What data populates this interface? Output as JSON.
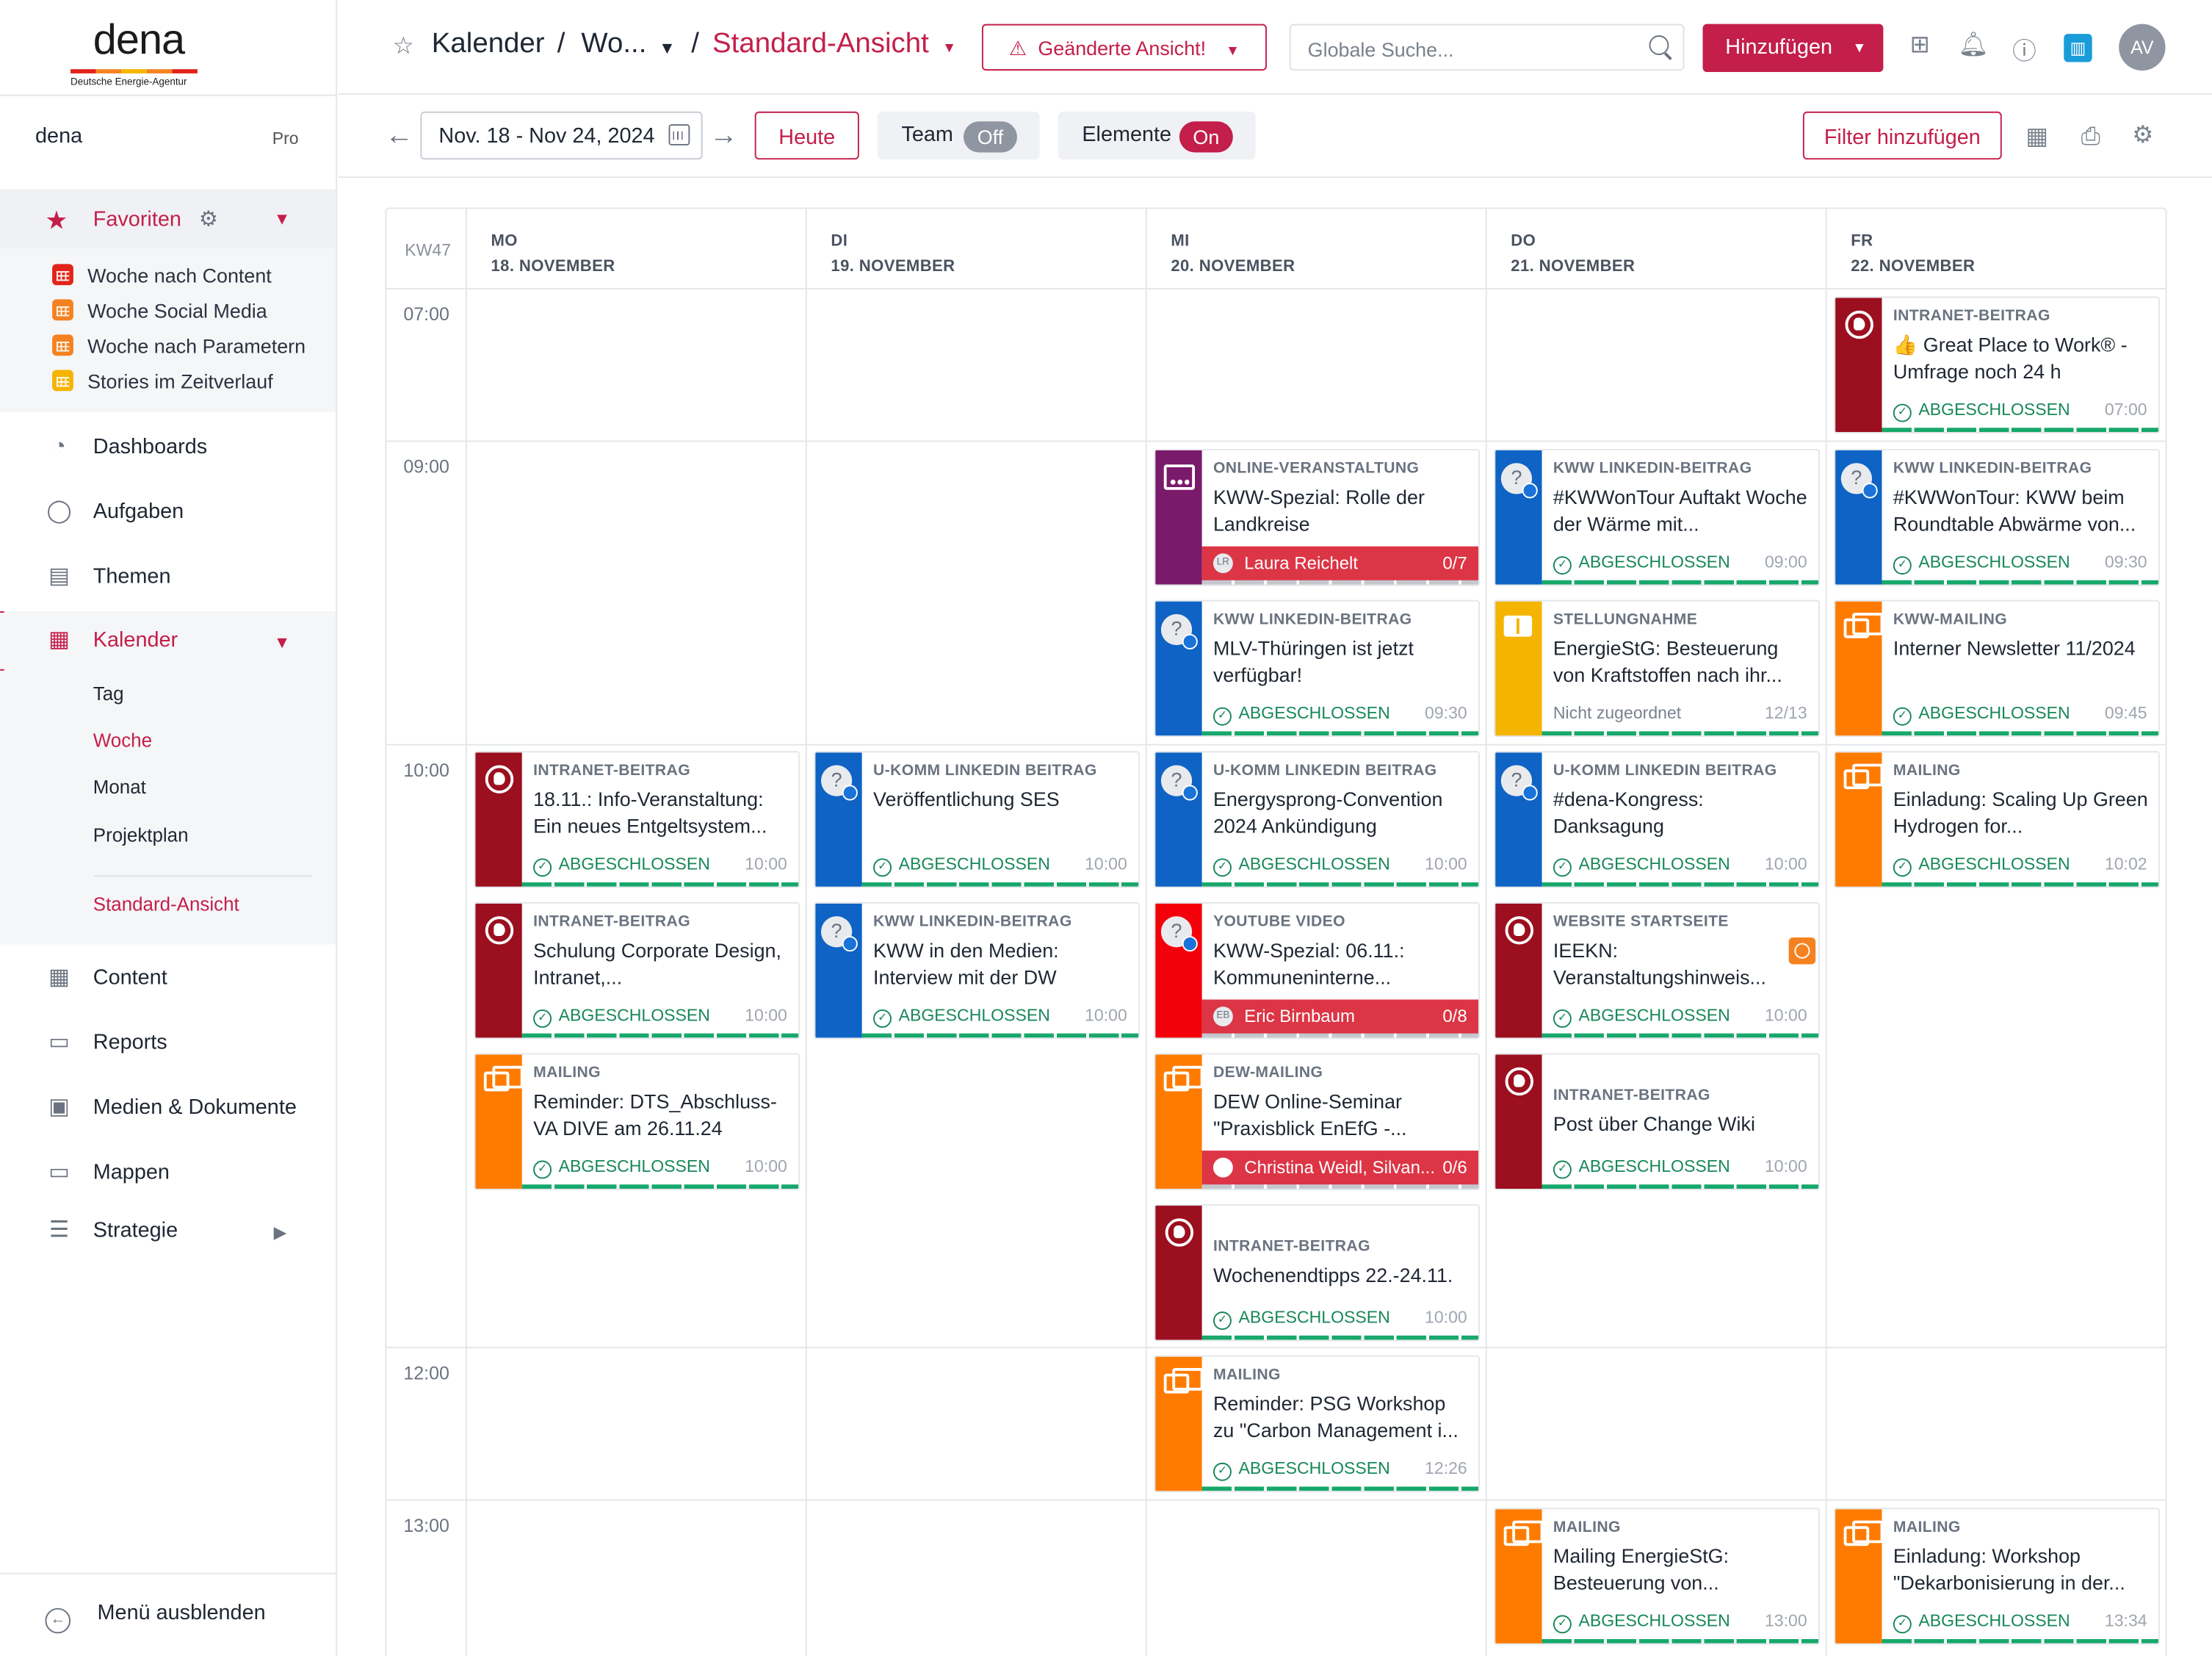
{
  "logo": {
    "word": "dena",
    "sub": "Deutsche Energie-Agentur"
  },
  "org": {
    "name": "dena",
    "plan": "Pro"
  },
  "favorites": {
    "label": "Favoriten",
    "items": [
      {
        "label": "Woche nach Content",
        "color": "#e2231a"
      },
      {
        "label": "Woche Social Media",
        "color": "#f58220"
      },
      {
        "label": "Woche nach Parametern",
        "color": "#f58220"
      },
      {
        "label": "Stories im Zeitverlauf",
        "color": "#f5b400"
      }
    ]
  },
  "nav": {
    "dashboards": "Dashboards",
    "aufgaben": "Aufgaben",
    "themen": "Themen",
    "kalender": "Kalender",
    "content": "Content",
    "reports": "Reports",
    "medien": "Medien & Dokumente",
    "mappen": "Mappen",
    "strategie": "Strategie",
    "collapse": "Menü ausblenden"
  },
  "calendar_views": {
    "tag": "Tag",
    "woche": "Woche",
    "monat": "Monat",
    "projektplan": "Projektplan",
    "standard": "Standard-Ansicht"
  },
  "header": {
    "crumb_root": "Kalender",
    "crumb_sep": "/",
    "crumb_view": "Wo...",
    "crumb_current": "Standard-Ansicht",
    "changed_view": "Geänderte Ansicht!",
    "search_placeholder": "Globale Suche...",
    "add_button": "Hinzufügen",
    "avatar": "AV"
  },
  "toolbar": {
    "date_range": "Nov. 18 - Nov 24, 2024",
    "today": "Heute",
    "team_label": "Team",
    "team_state": "Off",
    "elements_label": "Elemente",
    "elements_state": "On",
    "add_filter": "Filter hinzufügen"
  },
  "week": {
    "kw": "KW47",
    "days": [
      {
        "dow": "MO",
        "date": "18. NOVEMBER"
      },
      {
        "dow": "DI",
        "date": "19. NOVEMBER"
      },
      {
        "dow": "MI",
        "date": "20. NOVEMBER"
      },
      {
        "dow": "DO",
        "date": "21. NOVEMBER"
      },
      {
        "dow": "FR",
        "date": "22. NOVEMBER"
      }
    ],
    "times": [
      "07:00",
      "09:00",
      "10:00",
      "12:00",
      "13:00"
    ]
  },
  "colors": {
    "brand": "#c41e4b",
    "intranet": "#9b0f1f",
    "linkedin": "#0e63c4",
    "mailing": "#ff7b00",
    "event": "#7a1a6b",
    "youtube": "#f4000a",
    "statement": "#f5b400",
    "done": "#17875a"
  },
  "events": [
    {
      "day": 4,
      "row": 0,
      "kind": "globe",
      "color": "#9b0f1f",
      "type": "INTRANET-BEITRAG",
      "title": "👍 Great Place to Work® - Umfrage noch 24 h",
      "status": "ABGESCHLOSSEN",
      "time": "07:00"
    },
    {
      "day": 2,
      "row": 1,
      "kind": "people",
      "color": "#7a1a6b",
      "type": "ONLINE-VERANSTALTUNG",
      "title": "KWW-Spezial: Rolle der Landkreise",
      "assignee": "Laura Reichelt",
      "assignee_initials": "LR",
      "count": "0/7"
    },
    {
      "day": 3,
      "row": 1,
      "kind": "q",
      "color": "#0e63c4",
      "type": "KWW LINKEDIN-BEITRAG",
      "title": "#KWWonTour Auftakt Woche der Wärme mit...",
      "status": "ABGESCHLOSSEN",
      "time": "09:00"
    },
    {
      "day": 4,
      "row": 1,
      "kind": "q",
      "color": "#0e63c4",
      "type": "KWW LINKEDIN-BEITRAG",
      "title": "#KWWonTour: KWW beim Roundtable Abwärme von...",
      "status": "ABGESCHLOSSEN",
      "time": "09:30"
    },
    {
      "day": 2,
      "row": 2,
      "kind": "q",
      "color": "#0e63c4",
      "type": "KWW LINKEDIN-BEITRAG",
      "title": "MLV-Thüringen ist jetzt verfügbar!",
      "status": "ABGESCHLOSSEN",
      "time": "09:30"
    },
    {
      "day": 3,
      "row": 2,
      "kind": "book",
      "color": "#f5b400",
      "type": "STELLUNGNAHME",
      "title": "EnergieStG: Besteuerung von Kraftstoffen nach ihr...",
      "status_none": "Nicht zugeordnet",
      "time": "12/13"
    },
    {
      "day": 4,
      "row": 2,
      "kind": "mail",
      "color": "#ff7b00",
      "type": "KWW-MAILING",
      "title": "Interner Newsletter 11/2024",
      "status": "ABGESCHLOSSEN",
      "time": "09:45"
    },
    {
      "day": 0,
      "row": 3,
      "kind": "globe",
      "color": "#9b0f1f",
      "type": "INTRANET-BEITRAG",
      "title": "18.11.: Info-Veranstaltung: Ein neues Entgeltsystem...",
      "status": "ABGESCHLOSSEN",
      "time": "10:00"
    },
    {
      "day": 1,
      "row": 3,
      "kind": "q",
      "color": "#0e63c4",
      "type": "U-KOMM LINKEDIN BEITRAG",
      "title": "Veröffentlichung SES",
      "status": "ABGESCHLOSSEN",
      "time": "10:00"
    },
    {
      "day": 2,
      "row": 3,
      "kind": "q",
      "color": "#0e63c4",
      "type": "U-KOMM LINKEDIN BEITRAG",
      "title": "Energysprong-Convention 2024 Ankündigung",
      "status": "ABGESCHLOSSEN",
      "time": "10:00"
    },
    {
      "day": 3,
      "row": 3,
      "kind": "q",
      "color": "#0e63c4",
      "type": "U-KOMM LINKEDIN BEITRAG",
      "title": "#dena-Kongress: Danksagung",
      "status": "ABGESCHLOSSEN",
      "time": "10:00"
    },
    {
      "day": 4,
      "row": 3,
      "kind": "mail",
      "color": "#ff7b00",
      "type": "MAILING",
      "title": "Einladung: Scaling Up Green Hydrogen for...",
      "status": "ABGESCHLOSSEN",
      "time": "10:02"
    },
    {
      "day": 0,
      "row": 4,
      "kind": "globe",
      "color": "#9b0f1f",
      "type": "INTRANET-BEITRAG",
      "title": "Schulung Corporate Design, Intranet,...",
      "status": "ABGESCHLOSSEN",
      "time": "10:00"
    },
    {
      "day": 1,
      "row": 4,
      "kind": "q",
      "color": "#0e63c4",
      "type": "KWW LINKEDIN-BEITRAG",
      "title": "KWW in den Medien: Interview mit der DW",
      "status": "ABGESCHLOSSEN",
      "time": "10:00"
    },
    {
      "day": 2,
      "row": 4,
      "kind": "q",
      "color": "#f4000a",
      "type": "YOUTUBE VIDEO",
      "title": "KWW-Spezial: 06.11.: Kommuneninterne...",
      "assignee": "Eric Birnbaum",
      "assignee_initials": "EB",
      "count": "0/8"
    },
    {
      "day": 3,
      "row": 4,
      "kind": "globe",
      "color": "#9b0f1f",
      "type": "WEBSITE STARTSEITE",
      "title": "IEEKN: Veranstaltungshinweis...",
      "status": "ABGESCHLOSSEN",
      "time": "10:00",
      "clock": true
    },
    {
      "day": 0,
      "row": 5,
      "kind": "mail",
      "color": "#ff7b00",
      "type": "MAILING",
      "title": "Reminder: DTS_Abschluss-VA DIVE am 26.11.24",
      "status": "ABGESCHLOSSEN",
      "time": "10:00"
    },
    {
      "day": 2,
      "row": 5,
      "kind": "mail",
      "color": "#ff7b00",
      "type": "DEW-MAILING",
      "title": "DEW Online-Seminar \"Praxisblick EnEfG -...",
      "assignee": "Christina Weidl, Silvan...",
      "assignee_initials": "",
      "count": "0/6"
    },
    {
      "day": 3,
      "row": 5,
      "kind": "globe",
      "color": "#9b0f1f",
      "type": "INTRANET-BEITRAG",
      "title": "Post über Change Wiki",
      "status": "ABGESCHLOSSEN",
      "time": "10:00",
      "single": true
    },
    {
      "day": 2,
      "row": 6,
      "kind": "globe",
      "color": "#9b0f1f",
      "type": "INTRANET-BEITRAG",
      "title": "Wochenendtipps 22.-24.11.",
      "status": "ABGESCHLOSSEN",
      "time": "10:00",
      "single": true
    },
    {
      "day": 2,
      "row": 7,
      "kind": "mail",
      "color": "#ff7b00",
      "type": "MAILING",
      "title": "Reminder: PSG Workshop zu \"Carbon Management i...",
      "status": "ABGESCHLOSSEN",
      "time": "12:26"
    },
    {
      "day": 3,
      "row": 8,
      "kind": "mail",
      "color": "#ff7b00",
      "type": "MAILING",
      "title": "Mailing EnergieStG: Besteuerung von...",
      "status": "ABGESCHLOSSEN",
      "time": "13:00"
    },
    {
      "day": 4,
      "row": 8,
      "kind": "mail",
      "color": "#ff7b00",
      "type": "MAILING",
      "title": "Einladung: Workshop \"Dekarbonisierung in der...",
      "status": "ABGESCHLOSSEN",
      "time": "13:34"
    }
  ]
}
